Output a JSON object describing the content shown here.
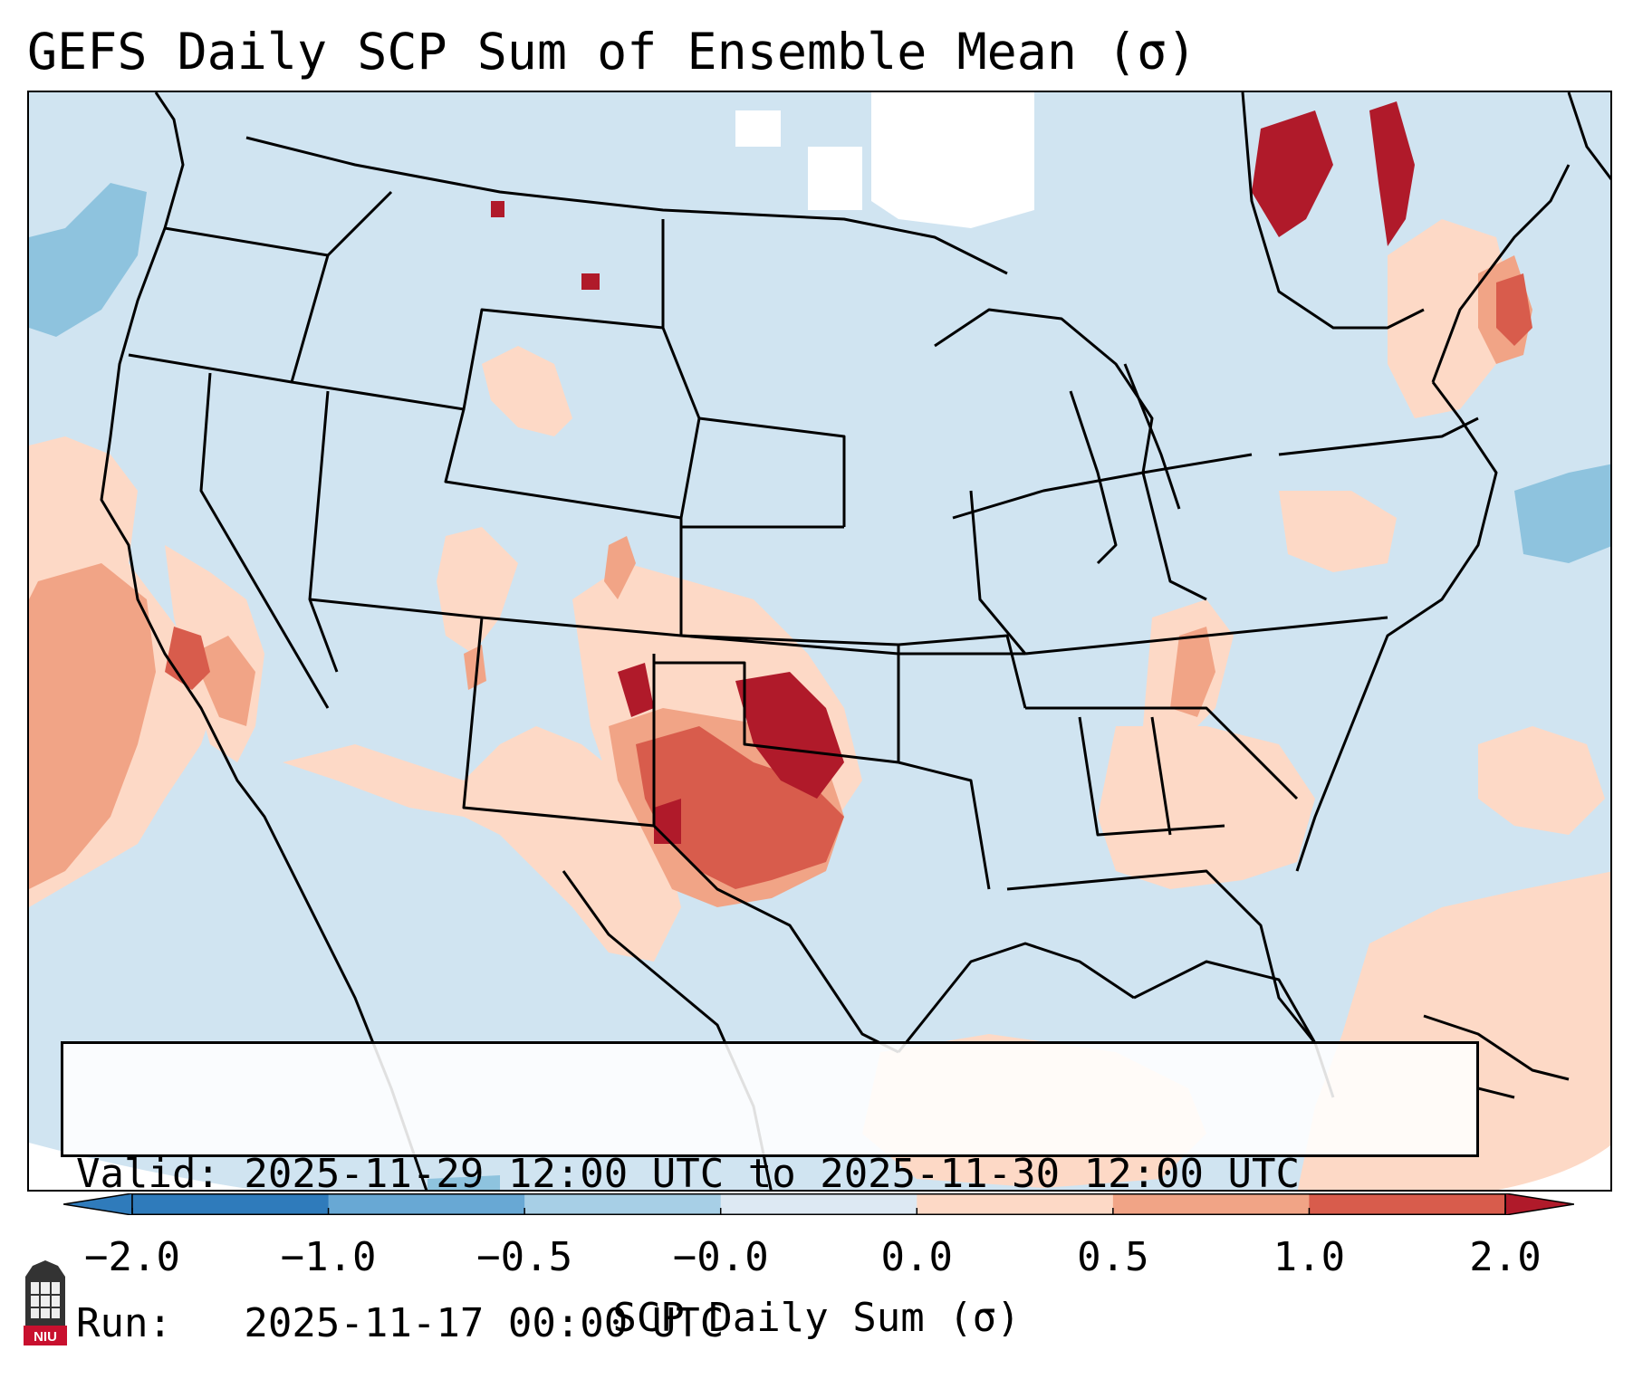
{
  "title": "GEFS Daily SCP Sum of Ensemble Mean (σ)",
  "valid_box": {
    "line1": "Valid: 2025-11-29 12:00 UTC to 2025-11-30 12:00 UTC",
    "line2": "Run:   2025-11-17 00:00 UTC"
  },
  "colorbar": {
    "title": "SCP Daily Sum (σ)",
    "ticks": [
      "−2.0",
      "−1.0",
      "−0.5",
      "−0.0",
      "0.0",
      "0.5",
      "1.0",
      "2.0"
    ],
    "colors": [
      "#2f7bbb",
      "#68a8d4",
      "#a7cfe6",
      "#dde9f3",
      "#fdd9c6",
      "#f1a486",
      "#d85c4c",
      "#b01a2a"
    ],
    "extend": "both"
  },
  "map": {
    "projection": "lambert-conformal",
    "region": "CONUS",
    "ocean_color": "#d0e4f1"
  },
  "logo": {
    "text": "NIU"
  }
}
